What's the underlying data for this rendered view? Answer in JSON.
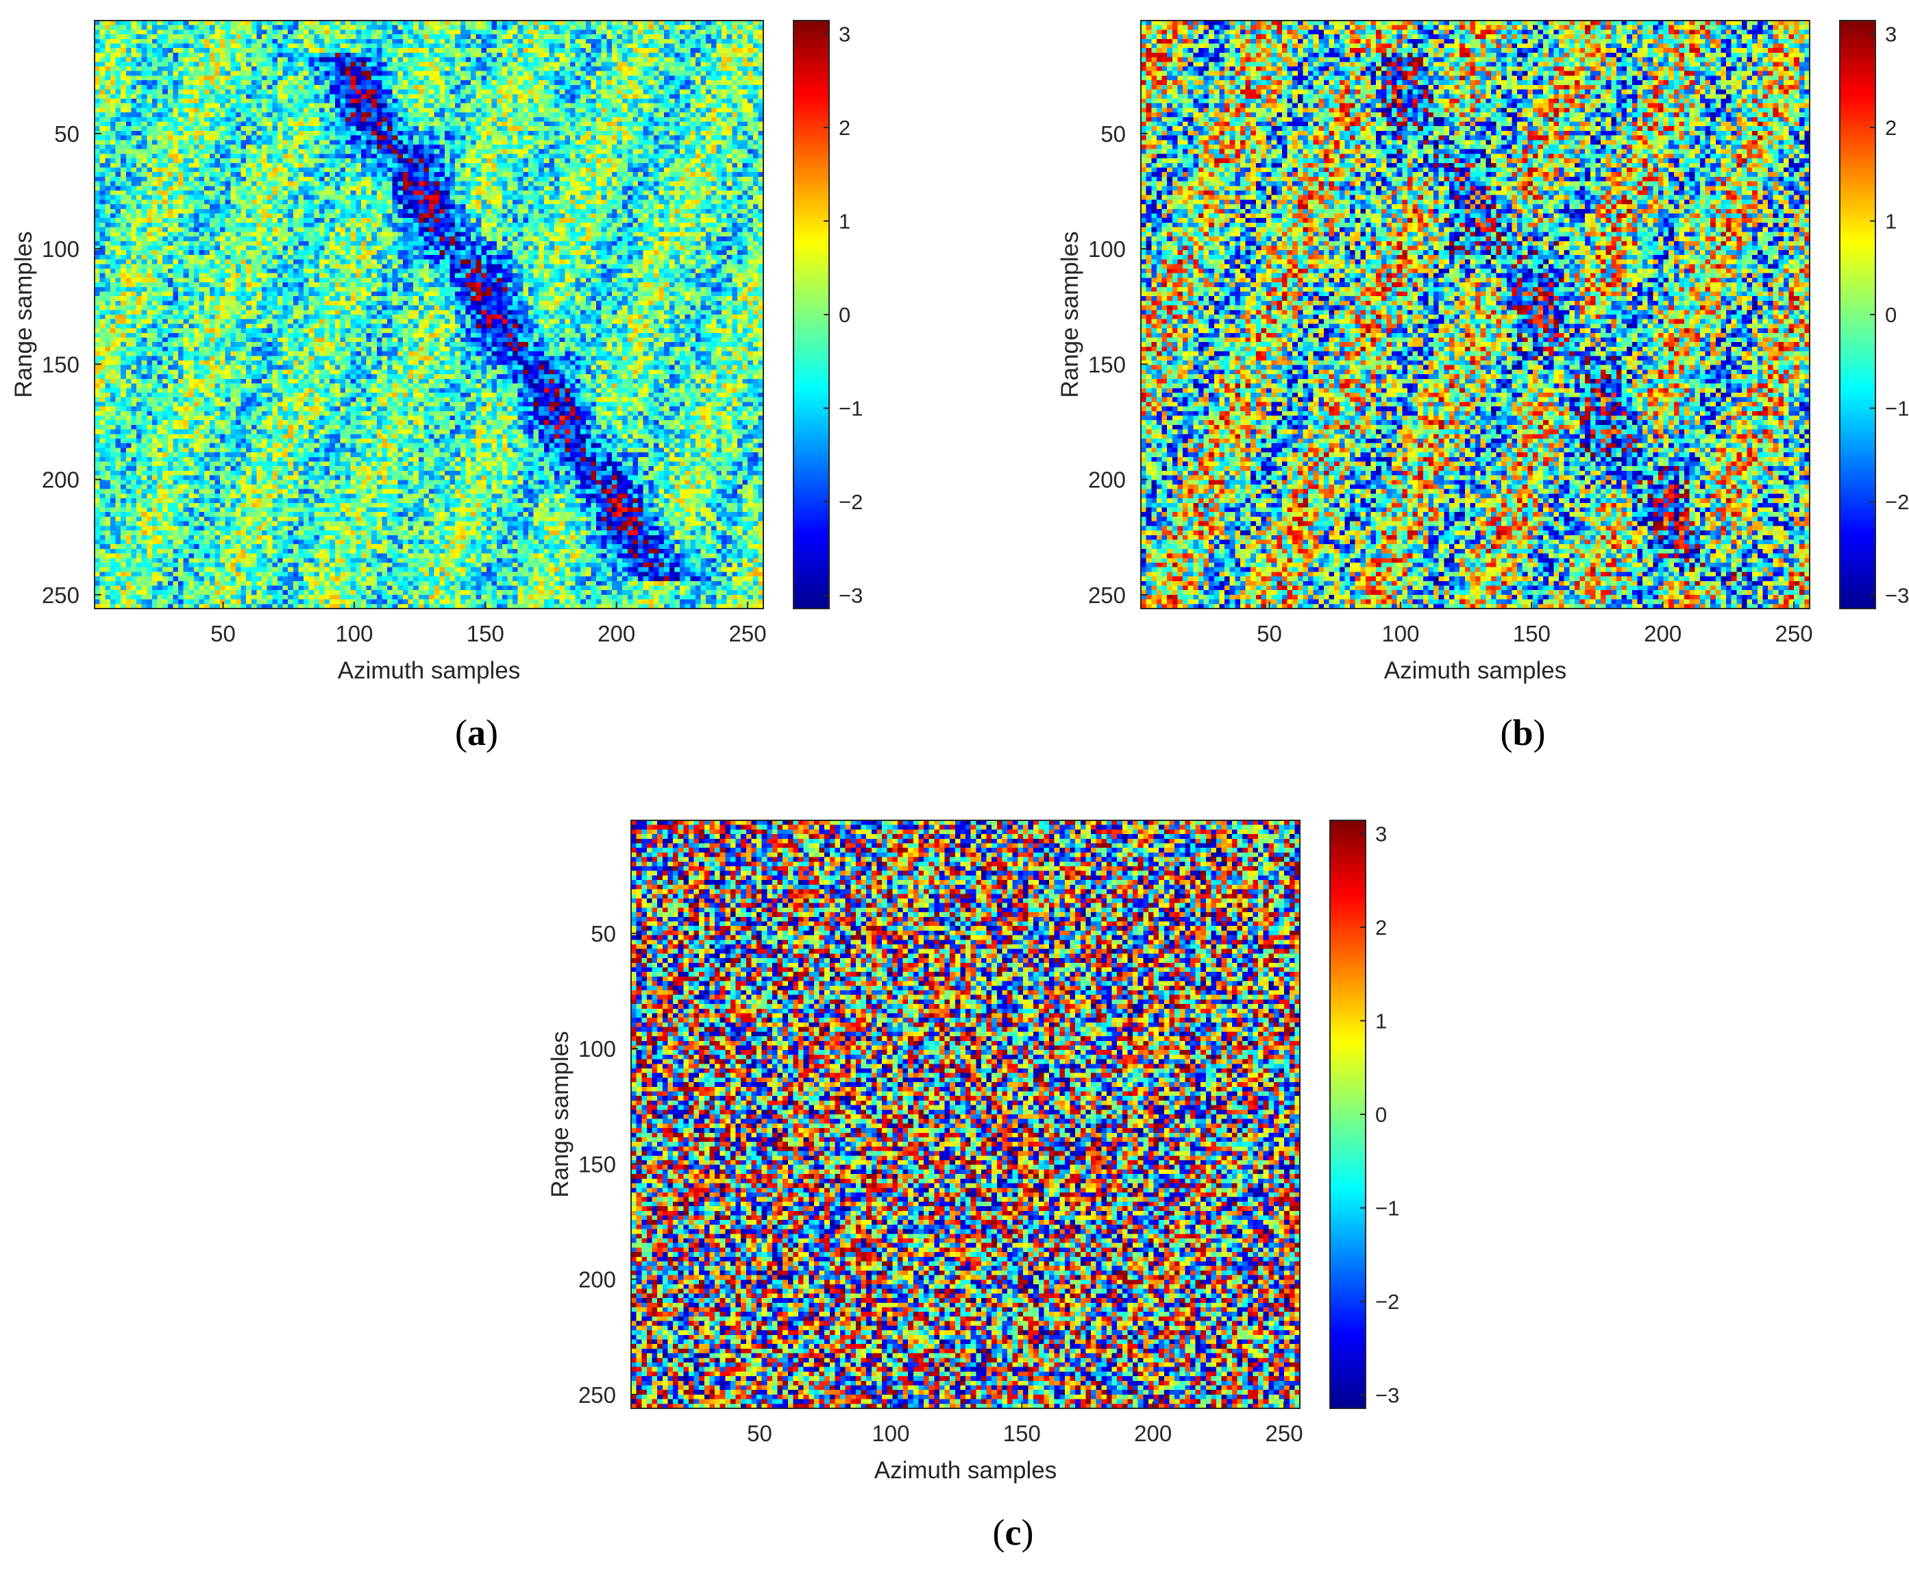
{
  "colormap": {
    "name": "jet",
    "stops": [
      "#00008f",
      "#0000ff",
      "#00ffff",
      "#ffff00",
      "#ff0000",
      "#800000"
    ]
  },
  "chart_data": [
    {
      "type": "heatmap",
      "panel_label": "a",
      "title": "",
      "xlabel": "Azimuth samples",
      "ylabel": "Range samples",
      "xlim": [
        1,
        256
      ],
      "ylim": [
        256,
        1
      ],
      "xticks": [
        50,
        100,
        150,
        200,
        250
      ],
      "yticks": [
        50,
        100,
        150,
        200,
        250
      ],
      "colorbar": {
        "clim": [
          -3.1416,
          3.1416
        ],
        "ticks": [
          -3,
          -2,
          -1,
          0,
          1,
          2,
          3
        ]
      },
      "z_description_range": [
        -3.1416,
        3.1416
      ],
      "pattern": "noisy wrapped phase, mostly green/cyan, with a visible diagonal feature from upper-middle toward lower-right"
    },
    {
      "type": "heatmap",
      "panel_label": "b",
      "title": "",
      "xlabel": "Azimuth samples",
      "ylabel": "Range samples",
      "xlim": [
        1,
        256
      ],
      "ylim": [
        256,
        1
      ],
      "xticks": [
        50,
        100,
        150,
        200,
        250
      ],
      "yticks": [
        50,
        100,
        150,
        200,
        250
      ],
      "colorbar": {
        "clim": [
          -3.1416,
          3.1416
        ],
        "ticks": [
          -3,
          -2,
          -1,
          0,
          1,
          2,
          3
        ]
      },
      "z_description_range": [
        -3.1416,
        3.1416
      ],
      "pattern": "noisier wrapped phase, more red and blue speckle, faint diagonal feature"
    },
    {
      "type": "heatmap",
      "panel_label": "c",
      "title": "",
      "xlabel": "Azimuth samples",
      "ylabel": "Range samples",
      "xlim": [
        1,
        256
      ],
      "ylim": [
        256,
        1
      ],
      "xticks": [
        50,
        100,
        150,
        200,
        250
      ],
      "yticks": [
        50,
        100,
        150,
        200,
        250
      ],
      "colorbar": {
        "clim": [
          -3.1416,
          3.1416
        ],
        "ticks": [
          -3,
          -2,
          -1,
          0,
          1,
          2,
          3
        ]
      },
      "z_description_range": [
        -3.1416,
        3.1416
      ],
      "pattern": "dense wrapped phase with strong red/blue fringes across the whole image"
    }
  ]
}
